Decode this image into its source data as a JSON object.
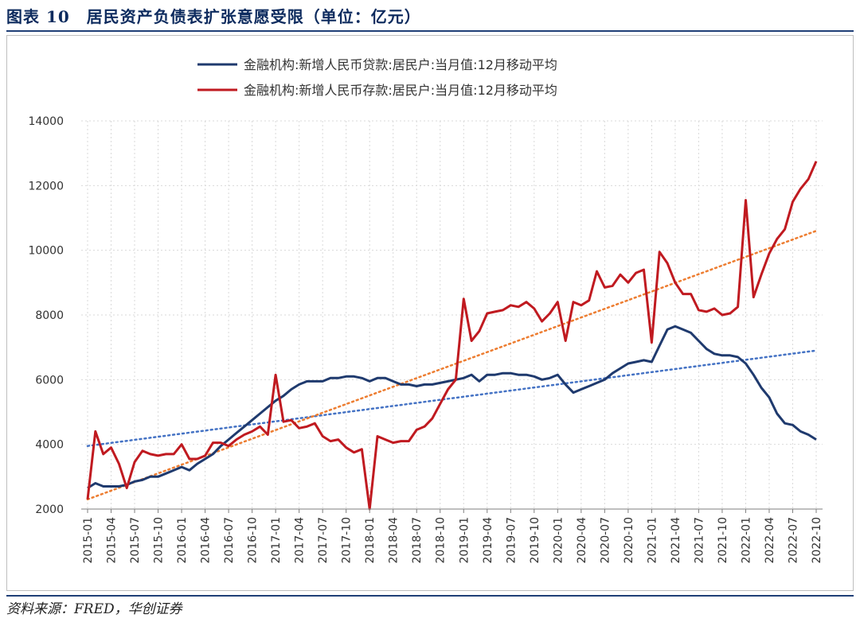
{
  "title": "图表 10　居民资产负债表扩张意愿受限（单位：亿元）",
  "source": "资料来源：FRED，华创证券",
  "chart_data": {
    "type": "line",
    "ylim": [
      2000,
      14000
    ],
    "yticks": [
      2000,
      4000,
      6000,
      8000,
      10000,
      12000,
      14000
    ],
    "grid": "dotted",
    "legend_position": "top",
    "x": [
      "2015-01",
      "2015-02",
      "2015-03",
      "2015-04",
      "2015-05",
      "2015-06",
      "2015-07",
      "2015-08",
      "2015-09",
      "2015-10",
      "2015-11",
      "2015-12",
      "2016-01",
      "2016-02",
      "2016-03",
      "2016-04",
      "2016-05",
      "2016-06",
      "2016-07",
      "2016-08",
      "2016-09",
      "2016-10",
      "2016-11",
      "2016-12",
      "2017-01",
      "2017-02",
      "2017-03",
      "2017-04",
      "2017-05",
      "2017-06",
      "2017-07",
      "2017-08",
      "2017-09",
      "2017-10",
      "2017-11",
      "2017-12",
      "2018-01",
      "2018-02",
      "2018-03",
      "2018-04",
      "2018-05",
      "2018-06",
      "2018-07",
      "2018-08",
      "2018-09",
      "2018-10",
      "2018-11",
      "2018-12",
      "2019-01",
      "2019-02",
      "2019-03",
      "2019-04",
      "2019-05",
      "2019-06",
      "2019-07",
      "2019-08",
      "2019-09",
      "2019-10",
      "2019-11",
      "2019-12",
      "2020-01",
      "2020-02",
      "2020-03",
      "2020-04",
      "2020-05",
      "2020-06",
      "2020-07",
      "2020-08",
      "2020-09",
      "2020-10",
      "2020-11",
      "2020-12",
      "2021-01",
      "2021-02",
      "2021-03",
      "2021-04",
      "2021-05",
      "2021-06",
      "2021-07",
      "2021-08",
      "2021-09",
      "2021-10",
      "2021-11",
      "2021-12",
      "2022-01",
      "2022-02",
      "2022-03",
      "2022-04",
      "2022-05",
      "2022-06",
      "2022-07",
      "2022-08",
      "2022-09",
      "2022-10"
    ],
    "xticks": [
      "2015-01",
      "2015-04",
      "2015-07",
      "2015-10",
      "2016-01",
      "2016-04",
      "2016-07",
      "2016-10",
      "2017-01",
      "2017-04",
      "2017-07",
      "2017-10",
      "2018-01",
      "2018-04",
      "2018-07",
      "2018-10",
      "2019-01",
      "2019-04",
      "2019-07",
      "2019-10",
      "2020-01",
      "2020-04",
      "2020-07",
      "2020-10",
      "2021-01",
      "2021-04",
      "2021-07",
      "2021-10",
      "2022-01",
      "2022-04",
      "2022-07",
      "2022-10"
    ],
    "series": [
      {
        "name": "金融机构:新增人民币贷款:居民户:当月值:12月移动平均",
        "color": "#1f3a6e",
        "values": [
          2650,
          2800,
          2700,
          2700,
          2700,
          2750,
          2850,
          2900,
          3000,
          3000,
          3100,
          3200,
          3300,
          3200,
          3400,
          3550,
          3700,
          3950,
          4150,
          4350,
          4550,
          4750,
          4950,
          5150,
          5350,
          5500,
          5700,
          5850,
          5950,
          5950,
          5950,
          6050,
          6050,
          6100,
          6100,
          6050,
          5950,
          6050,
          6050,
          5950,
          5850,
          5850,
          5800,
          5850,
          5850,
          5900,
          5950,
          6000,
          6050,
          6150,
          5950,
          6150,
          6150,
          6200,
          6200,
          6150,
          6150,
          6100,
          6000,
          6050,
          6150,
          5850,
          5600,
          5700,
          5800,
          5900,
          6000,
          6200,
          6350,
          6500,
          6550,
          6600,
          6550,
          7050,
          7550,
          7650,
          7550,
          7450,
          7200,
          6950,
          6800,
          6750,
          6750,
          6700,
          6500,
          6150,
          5750,
          5450,
          4950,
          4650,
          4600,
          4400,
          4300,
          4150
        ]
      },
      {
        "name": "金融机构:新增人民币存款:居民户:当月值:12月移动平均",
        "color": "#c01a20",
        "values": [
          2300,
          4400,
          3700,
          3900,
          3400,
          2650,
          3450,
          3800,
          3700,
          3650,
          3700,
          3700,
          4000,
          3550,
          3550,
          3650,
          4050,
          4050,
          3950,
          4150,
          4300,
          4400,
          4550,
          4300,
          6150,
          4700,
          4750,
          4500,
          4550,
          4650,
          4250,
          4100,
          4150,
          3900,
          3750,
          3850,
          2000,
          4250,
          4150,
          4050,
          4100,
          4100,
          4450,
          4550,
          4800,
          5250,
          5700,
          6000,
          8500,
          7200,
          7500,
          8050,
          8100,
          8150,
          8300,
          8250,
          8400,
          8200,
          7800,
          8050,
          8400,
          7200,
          8400,
          8300,
          8450,
          9350,
          8850,
          8900,
          9250,
          9000,
          9300,
          9400,
          7150,
          9950,
          9600,
          9000,
          8650,
          8650,
          8150,
          8100,
          8200,
          8000,
          8050,
          8250,
          11550,
          8550,
          9250,
          9900,
          10350,
          10650,
          11500,
          11900,
          12200,
          12750
        ]
      }
    ],
    "trendlines": [
      {
        "series": "金融机构:新增人民币贷款:居民户:当月值:12月移动平均",
        "color": "#4472c4",
        "style": "dotted",
        "start": 3950,
        "end": 6900
      },
      {
        "series": "金融机构:新增人民币存款:居民户:当月值:12月移动平均",
        "color": "#ed7d31",
        "style": "dotted",
        "start": 2300,
        "end": 10600
      }
    ]
  }
}
